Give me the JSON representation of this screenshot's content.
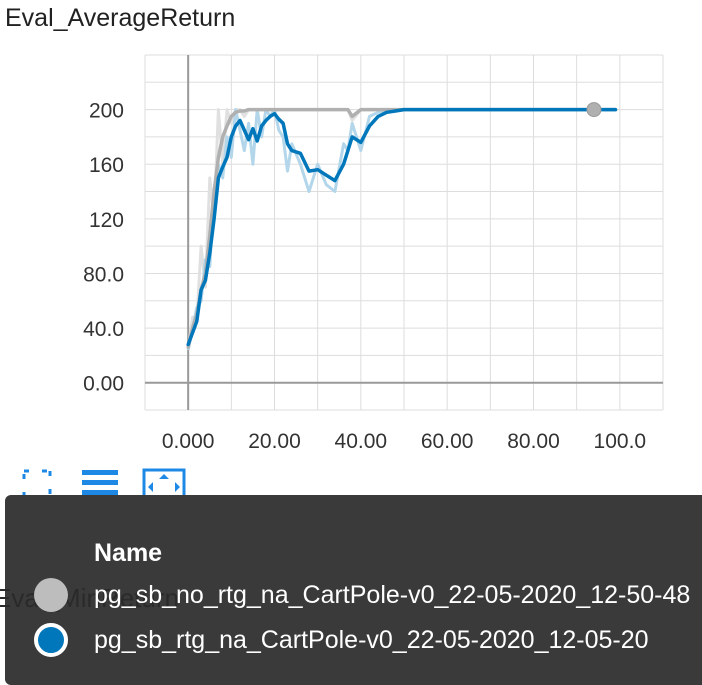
{
  "title": "Eval_AverageReturn",
  "below_title": "Eval_MinReturn",
  "legend": {
    "header": "Name",
    "runs": [
      {
        "label": "pg_sb_no_rtg_na_CartPole-v0_22-05-2020_12-50-48",
        "color": "#bdbdbd",
        "selected": false
      },
      {
        "label": "pg_sb_rtg_na_CartPole-v0_22-05-2020_12-05-20",
        "color": "#0077bb",
        "selected": true
      }
    ]
  },
  "toolbar": {
    "fullscreen_icon": "fullscreen-icon",
    "list_icon": "list-icon",
    "fit_icon": "fit-domain-icon"
  },
  "chart_data": {
    "type": "line",
    "title": "Eval_AverageReturn",
    "xlabel": "",
    "ylabel": "",
    "xlim": [
      -10,
      110
    ],
    "ylim": [
      -20,
      240
    ],
    "xticks": [
      "0.000",
      "20.00",
      "40.00",
      "60.00",
      "80.00",
      "100.0"
    ],
    "yticks": [
      "0.00",
      "40.0",
      "80.0",
      "120",
      "160",
      "200"
    ],
    "grid": true,
    "series": [
      {
        "name": "pg_sb_no_rtg_na_CartPole-v0_22-05-2020_12-50-48",
        "color": "#b0b0b0",
        "raw_color": "#e0e0e0",
        "x": [
          0,
          1,
          2,
          3,
          4,
          5,
          6,
          7,
          8,
          9,
          10,
          11,
          12,
          13,
          14,
          15,
          16,
          18,
          20,
          22,
          25,
          30,
          35,
          37,
          38,
          40,
          45,
          50,
          60,
          70,
          80,
          90,
          94,
          99
        ],
        "y": [
          26,
          40,
          50,
          68,
          80,
          108,
          140,
          165,
          180,
          188,
          195,
          198,
          199,
          199,
          200,
          200,
          200,
          200,
          200,
          200,
          200,
          200,
          200,
          200,
          195,
          200,
          200,
          200,
          200,
          200,
          200,
          200,
          200,
          200
        ],
        "raw_y": [
          24,
          48,
          46,
          100,
          70,
          150,
          120,
          200,
          160,
          200,
          190,
          200,
          200,
          195,
          200,
          200,
          200,
          200,
          200,
          200,
          200,
          200,
          200,
          200,
          192,
          200,
          200,
          200,
          200,
          200,
          200,
          200,
          200,
          200
        ]
      },
      {
        "name": "pg_sb_rtg_na_CartPole-v0_22-05-2020_12-05-20",
        "color": "#0077bb",
        "raw_color": "#b3d6ea",
        "x": [
          0,
          2,
          3,
          4,
          5,
          6,
          7,
          8,
          9,
          10,
          11,
          12,
          13,
          14,
          15,
          16,
          17,
          18,
          19,
          20,
          21,
          22,
          23,
          24,
          26,
          28,
          30,
          32,
          34,
          36,
          37,
          38,
          40,
          42,
          44,
          46,
          48,
          50,
          55,
          60,
          70,
          80,
          90,
          99
        ],
        "y": [
          28,
          45,
          68,
          75,
          95,
          120,
          150,
          158,
          165,
          180,
          188,
          192,
          185,
          178,
          186,
          177,
          188,
          192,
          195,
          197,
          193,
          190,
          175,
          170,
          168,
          155,
          156,
          152,
          148,
          160,
          170,
          180,
          176,
          188,
          195,
          198,
          199,
          200,
          200,
          200,
          200,
          200,
          200,
          200
        ],
        "raw_y": [
          24,
          55,
          60,
          90,
          85,
          140,
          160,
          150,
          180,
          165,
          200,
          185,
          170,
          190,
          160,
          200,
          180,
          200,
          195,
          200,
          185,
          180,
          155,
          175,
          160,
          140,
          160,
          145,
          140,
          175,
          170,
          190,
          170,
          195,
          198,
          200,
          200,
          200,
          200,
          200,
          200,
          200,
          200,
          200
        ]
      }
    ],
    "highlight_point": {
      "series": 0,
      "x": 94,
      "y": 200
    }
  }
}
